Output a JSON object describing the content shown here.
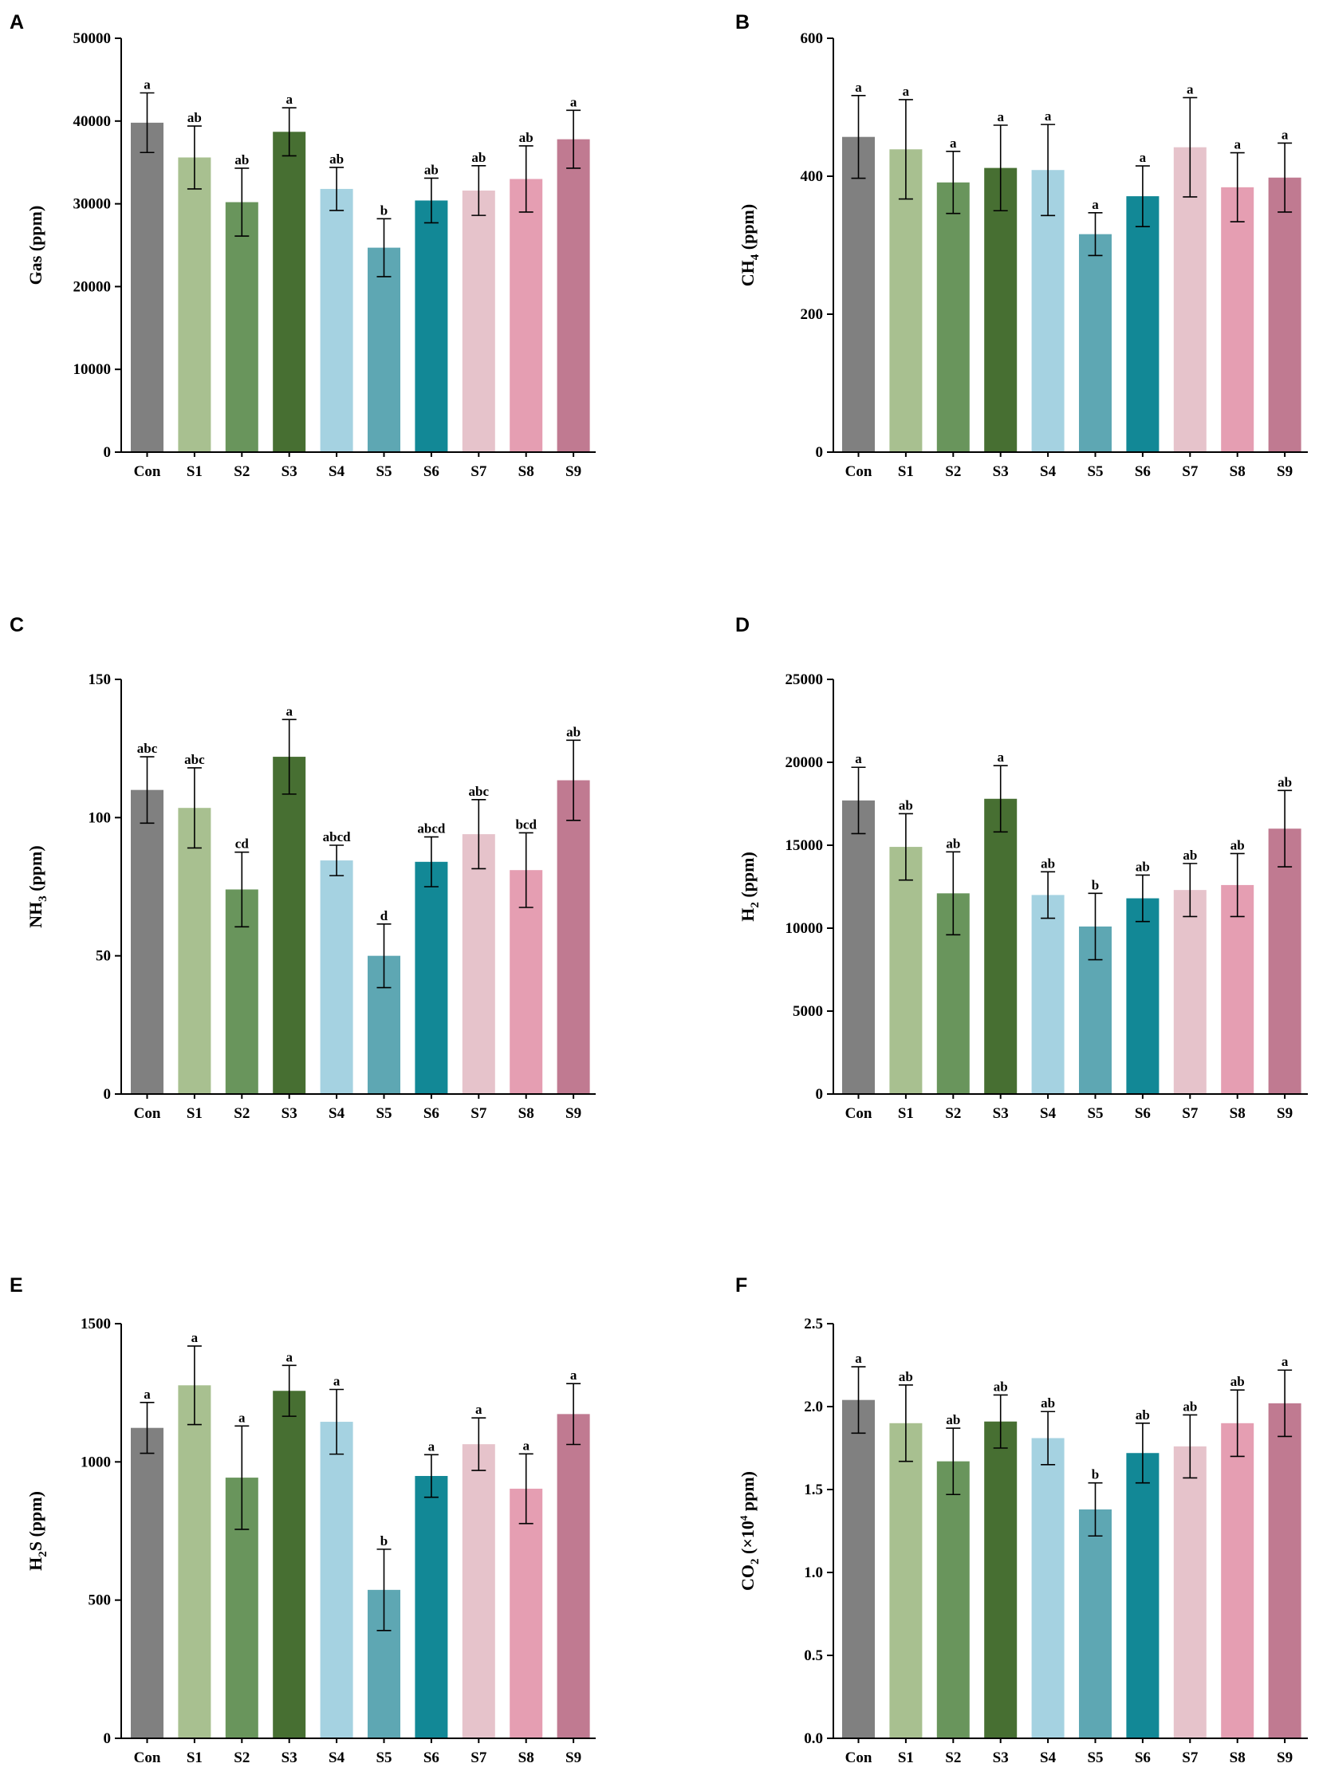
{
  "colors": [
    "#808080",
    "#a8c090",
    "#69955c",
    "#476f32",
    "#a5d2e1",
    "#5ea7b3",
    "#128896",
    "#e6c3cb",
    "#e59eb2",
    "#c07a91"
  ],
  "chart_data": [
    {
      "panel": "A",
      "type": "bar",
      "ylabel_main": "Gas (ppm)",
      "ylabel_sub": "",
      "ylabel_suffix": "",
      "ylim": [
        0,
        50000
      ],
      "yticks": [
        0,
        10000,
        20000,
        30000,
        40000,
        50000
      ],
      "ytick_labels": [
        "0",
        "10000",
        "20000",
        "30000",
        "40000",
        "50000"
      ],
      "categories": [
        "Con",
        "S1",
        "S2",
        "S3",
        "S4",
        "S5",
        "S6",
        "S7",
        "S8",
        "S9"
      ],
      "values": [
        39800,
        35600,
        30200,
        38700,
        31800,
        24700,
        30400,
        31600,
        33000,
        37800
      ],
      "errors": [
        3600,
        3800,
        4100,
        2900,
        2600,
        3500,
        2700,
        3000,
        4000,
        3500
      ],
      "letters": [
        "a",
        "ab",
        "ab",
        "a",
        "ab",
        "b",
        "ab",
        "ab",
        "ab",
        "a"
      ]
    },
    {
      "panel": "B",
      "type": "bar",
      "ylabel_main": "CH",
      "ylabel_sub": "4",
      "ylabel_suffix": " (ppm)",
      "ylim": [
        0,
        600
      ],
      "yticks": [
        0,
        200,
        400,
        600
      ],
      "ytick_labels": [
        "0",
        "200",
        "400",
        "600"
      ],
      "categories": [
        "Con",
        "S1",
        "S2",
        "S3",
        "S4",
        "S5",
        "S6",
        "S7",
        "S8",
        "S9"
      ],
      "values": [
        457,
        439,
        391,
        412,
        409,
        316,
        371,
        442,
        384,
        398
      ],
      "errors": [
        60,
        72,
        45,
        62,
        66,
        31,
        44,
        72,
        50,
        50
      ],
      "letters": [
        "a",
        "a",
        "a",
        "a",
        "a",
        "a",
        "a",
        "a",
        "a",
        "a"
      ]
    },
    {
      "panel": "C",
      "type": "bar",
      "ylabel_main": "NH",
      "ylabel_sub": "3",
      "ylabel_suffix": " (ppm)",
      "ylim": [
        0,
        150
      ],
      "yticks": [
        0,
        50,
        100,
        150
      ],
      "ytick_labels": [
        "0",
        "50",
        "100",
        "150"
      ],
      "categories": [
        "Con",
        "S1",
        "S2",
        "S3",
        "S4",
        "S5",
        "S6",
        "S7",
        "S8",
        "S9"
      ],
      "values": [
        110,
        103.5,
        74,
        122,
        84.5,
        50,
        84,
        94,
        81,
        113.5
      ],
      "errors": [
        12,
        14.5,
        13.5,
        13.5,
        5.5,
        11.5,
        9,
        12.5,
        13.5,
        14.5
      ],
      "letters": [
        "abc",
        "abc",
        "cd",
        "a",
        "abcd",
        "d",
        "abcd",
        "abc",
        "bcd",
        "ab"
      ]
    },
    {
      "panel": "D",
      "type": "bar",
      "ylabel_main": "H",
      "ylabel_sub": "2",
      "ylabel_suffix": " (ppm)",
      "ylim": [
        0,
        25000
      ],
      "yticks": [
        0,
        5000,
        10000,
        15000,
        20000,
        25000
      ],
      "ytick_labels": [
        "0",
        "5000",
        "10000",
        "15000",
        "20000",
        "25000"
      ],
      "categories": [
        "Con",
        "S1",
        "S2",
        "S3",
        "S4",
        "S5",
        "S6",
        "S7",
        "S8",
        "S9"
      ],
      "values": [
        17700,
        14900,
        12100,
        17800,
        12000,
        10100,
        11800,
        12300,
        12600,
        16000
      ],
      "errors": [
        2000,
        2000,
        2500,
        2000,
        1400,
        2000,
        1400,
        1600,
        1900,
        2300
      ],
      "letters": [
        "a",
        "ab",
        "ab",
        "a",
        "ab",
        "b",
        "ab",
        "ab",
        "ab",
        "ab"
      ]
    },
    {
      "panel": "E",
      "type": "bar",
      "ylabel_main": "H",
      "ylabel_sub": "2",
      "ylabel_suffix": "S (ppm)",
      "ylim": [
        0,
        1500
      ],
      "yticks": [
        0,
        500,
        1000,
        1500
      ],
      "ytick_labels": [
        "0",
        "500",
        "1000",
        "1500"
      ],
      "categories": [
        "Con",
        "S1",
        "S2",
        "S3",
        "S4",
        "S5",
        "S6",
        "S7",
        "S8",
        "S9"
      ],
      "values": [
        1123,
        1277,
        943,
        1257,
        1145,
        537,
        949,
        1064,
        903,
        1173
      ],
      "errors": [
        92,
        142,
        187,
        92,
        117,
        147,
        77,
        95,
        126,
        110
      ],
      "letters": [
        "a",
        "a",
        "a",
        "a",
        "a",
        "b",
        "a",
        "a",
        "a",
        "a"
      ]
    },
    {
      "panel": "F",
      "type": "bar",
      "ylabel_main": "CO",
      "ylabel_sub": "2",
      "ylabel_suffix": " (×10",
      "ylabel_sup": "4",
      "ylabel_end": " ppm)",
      "ylim": [
        0,
        2.5
      ],
      "yticks": [
        0,
        0.5,
        1.0,
        1.5,
        2.0,
        2.5
      ],
      "ytick_labels": [
        "0.0",
        "0.5",
        "1.0",
        "1.5",
        "2.0",
        "2.5"
      ],
      "categories": [
        "Con",
        "S1",
        "S2",
        "S3",
        "S4",
        "S5",
        "S6",
        "S7",
        "S8",
        "S9"
      ],
      "values": [
        2.04,
        1.9,
        1.67,
        1.91,
        1.81,
        1.38,
        1.72,
        1.76,
        1.9,
        2.02
      ],
      "errors": [
        0.2,
        0.23,
        0.2,
        0.16,
        0.16,
        0.16,
        0.18,
        0.19,
        0.2,
        0.2
      ],
      "letters": [
        "a",
        "ab",
        "ab",
        "ab",
        "ab",
        "b",
        "ab",
        "ab",
        "ab",
        "a"
      ]
    }
  ]
}
